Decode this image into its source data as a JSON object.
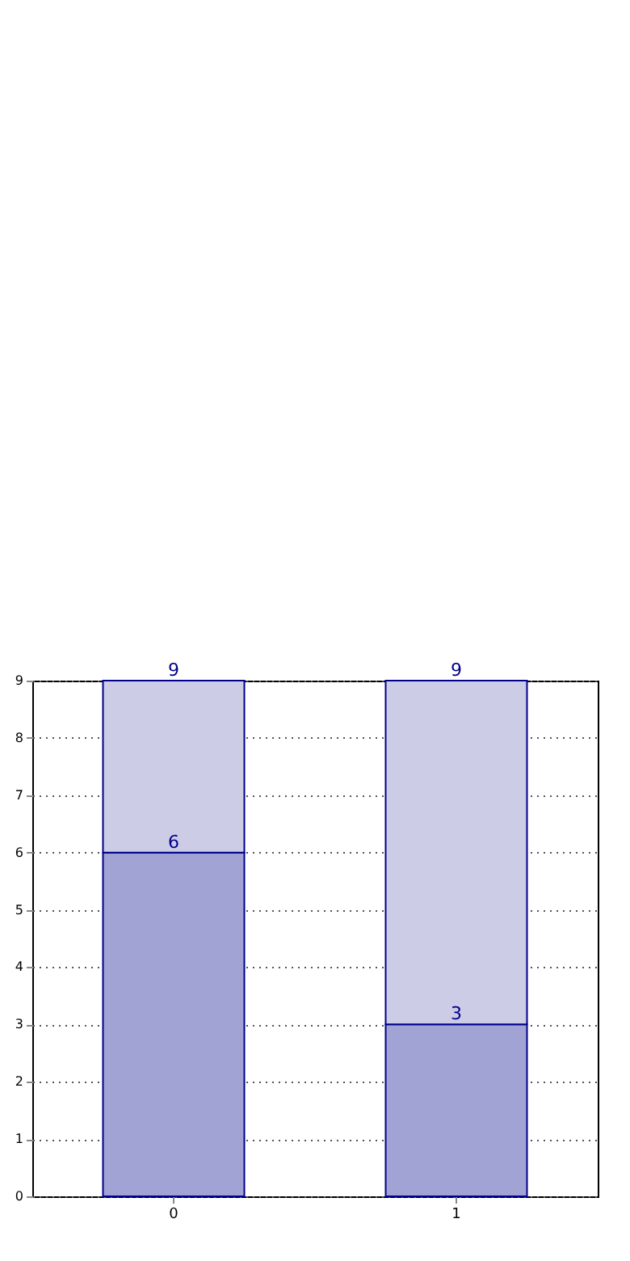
{
  "chart_data": {
    "type": "bar",
    "stacked": true,
    "categories": [
      "0",
      "1"
    ],
    "series": [
      {
        "color": "#a0a3d3",
        "values": [
          6,
          3
        ],
        "value_labels": [
          "6",
          "3"
        ]
      },
      {
        "color": "#cccce6",
        "values": [
          3,
          6
        ]
      }
    ],
    "totals": [
      "9",
      "9"
    ],
    "ylim": [
      0,
      9
    ],
    "yticks": [
      0,
      1,
      2,
      3,
      4,
      5,
      6,
      7,
      8,
      9
    ],
    "grid": true
  }
}
